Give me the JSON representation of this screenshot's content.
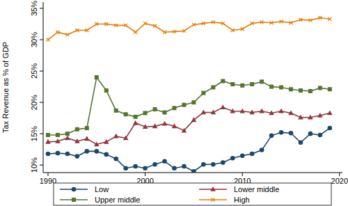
{
  "chart_data": {
    "type": "line",
    "y_label": "Tax Revenue as % of GDP",
    "x": [
      1990,
      1991,
      1992,
      1993,
      1994,
      1995,
      1996,
      1997,
      1998,
      1999,
      2000,
      2001,
      2002,
      2003,
      2004,
      2005,
      2006,
      2007,
      2008,
      2009,
      2010,
      2011,
      2012,
      2013,
      2014,
      2015,
      2016,
      2017,
      2018,
      2019
    ],
    "xlim": [
      1989.5,
      2020.3
    ],
    "xticks": [
      1990,
      2000,
      2010,
      2020
    ],
    "ylim": [
      8.8,
      36
    ],
    "yticks": [
      {
        "value": 10,
        "label": "10%"
      },
      {
        "value": 15,
        "label": "15%"
      },
      {
        "value": 20,
        "label": "20%"
      },
      {
        "value": 25,
        "label": "25%"
      },
      {
        "value": 30,
        "label": "30%"
      },
      {
        "value": 35,
        "label": "35%"
      }
    ],
    "grid": false,
    "legend": "bottom",
    "series": [
      {
        "name": "Low",
        "color": "#1a476f",
        "marker": "circle",
        "values": [
          11.8,
          11.9,
          11.8,
          11.4,
          12.2,
          12.2,
          11.7,
          11.0,
          9.5,
          9.8,
          9.5,
          10.1,
          10.6,
          9.5,
          9.8,
          9.0,
          10.1,
          10.1,
          10.4,
          11.1,
          11.5,
          11.8,
          12.4,
          14.7,
          15.2,
          15.1,
          13.6,
          15.0,
          14.8,
          15.9
        ]
      },
      {
        "name": "Lower middle",
        "color": "#90353b",
        "marker": "triangle",
        "values": [
          13.7,
          13.8,
          14.3,
          13.8,
          14.2,
          13.3,
          13.7,
          14.6,
          14.3,
          16.7,
          16.1,
          16.2,
          16.6,
          16.2,
          15.5,
          17.2,
          18.4,
          18.4,
          19.2,
          18.6,
          18.6,
          18.4,
          18.6,
          18.3,
          18.6,
          18.3,
          17.6,
          17.6,
          17.9,
          18.3
        ]
      },
      {
        "name": "Upper middle",
        "color": "#55752f",
        "marker": "square",
        "values": [
          14.8,
          14.8,
          15.0,
          15.7,
          15.9,
          24.0,
          21.9,
          18.7,
          18.1,
          17.7,
          18.3,
          18.9,
          18.4,
          19.1,
          19.6,
          20.0,
          21.5,
          22.4,
          23.4,
          22.9,
          22.7,
          22.9,
          23.3,
          22.5,
          22.4,
          22.1,
          21.9,
          21.8,
          22.3,
          22.1
        ]
      },
      {
        "name": "High",
        "color": "#e37e00",
        "marker": "x",
        "values": [
          30.0,
          31.2,
          30.8,
          31.5,
          31.5,
          32.5,
          32.5,
          32.3,
          32.3,
          31.2,
          32.6,
          32.2,
          31.2,
          31.3,
          31.4,
          32.4,
          32.6,
          32.8,
          32.6,
          31.5,
          31.7,
          32.6,
          32.8,
          32.7,
          32.9,
          32.7,
          33.2,
          33.1,
          33.5,
          33.3
        ]
      }
    ]
  }
}
